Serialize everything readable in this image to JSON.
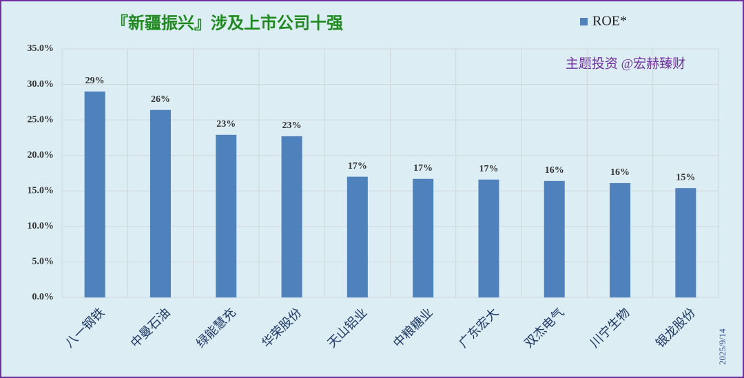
{
  "chart_data": {
    "type": "bar",
    "title": "『新疆振兴』涉及上市公司十强",
    "annotation": "主题投资 @宏赫臻财",
    "date": "2025/9/14",
    "categories": [
      "八一钢铁",
      "中曼石油",
      "绿能慧充",
      "华荣股份",
      "天山铝业",
      "中粮糖业",
      "广东宏大",
      "双杰电气",
      "川宁生物",
      "银龙股份"
    ],
    "series": [
      {
        "name": "ROE*",
        "color": "#4f81bd",
        "values": [
          29.0,
          26.4,
          22.9,
          22.7,
          17.0,
          16.7,
          16.6,
          16.4,
          16.1,
          15.4
        ],
        "value_labels": [
          "29%",
          "26%",
          "23%",
          "23%",
          "17%",
          "17%",
          "17%",
          "16%",
          "16%",
          "15%"
        ]
      }
    ],
    "ylim": [
      0,
      35
    ],
    "yticks": [
      {
        "value": 0,
        "label": "0.0%"
      },
      {
        "value": 5,
        "label": "5.0%"
      },
      {
        "value": 10,
        "label": "10.0%"
      },
      {
        "value": 15,
        "label": "15.0%"
      },
      {
        "value": 20,
        "label": "20.0%"
      },
      {
        "value": 25,
        "label": "25.0%"
      },
      {
        "value": 30,
        "label": "30.0%"
      },
      {
        "value": 35,
        "label": "35.0%"
      }
    ],
    "grid": true,
    "legend": "top-right"
  }
}
